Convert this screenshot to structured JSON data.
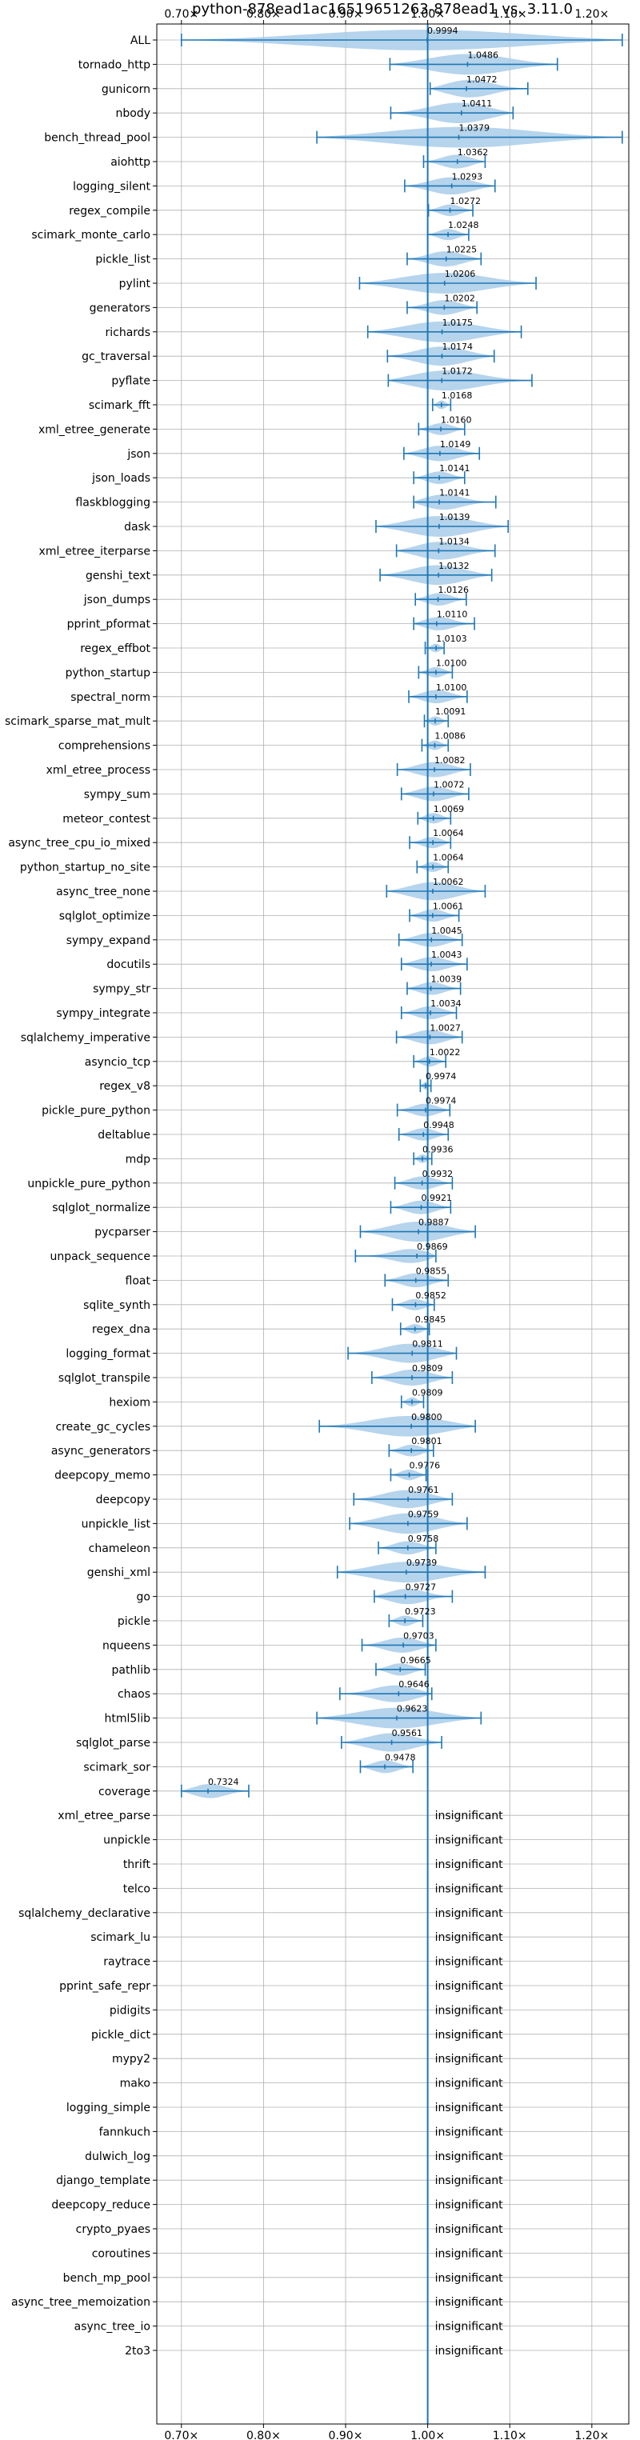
{
  "chart_data": {
    "type": "violin",
    "title": "python-878ead1ac16519651263-878ead1 vs. 3.11.0",
    "xlim": [
      0.67,
      1.245
    ],
    "x_ticks": [
      0.7,
      0.8,
      0.9,
      1.0,
      1.1,
      1.2
    ],
    "x_tick_labels": [
      "0.70×",
      "0.80×",
      "0.90×",
      "1.00×",
      "1.10×",
      "1.20×"
    ],
    "ticks_top_and_bottom": true,
    "grid": true,
    "reference_line": 1.0,
    "colors": {
      "violin": "#a9cde9",
      "whisker": "#1f77b4",
      "grid": "#b0b0b0",
      "reference": "#1f77b4"
    },
    "insignificant_label": "insignificant",
    "benchmarks": [
      {
        "name": "ALL",
        "mean": 0.9994,
        "label": "0.9994",
        "min": 0.7,
        "max": 1.237
      },
      {
        "name": "tornado_http",
        "mean": 1.0486,
        "label": "1.0486",
        "min": 0.954,
        "max": 1.158
      },
      {
        "name": "gunicorn",
        "mean": 1.0472,
        "label": "1.0472",
        "min": 1.003,
        "max": 1.122
      },
      {
        "name": "nbody",
        "mean": 1.0411,
        "label": "1.0411",
        "min": 0.955,
        "max": 1.104
      },
      {
        "name": "bench_thread_pool",
        "mean": 1.0379,
        "label": "1.0379",
        "min": 0.865,
        "max": 1.237
      },
      {
        "name": "aiohttp",
        "mean": 1.0362,
        "label": "1.0362",
        "min": 0.995,
        "max": 1.07
      },
      {
        "name": "logging_silent",
        "mean": 1.0293,
        "label": "1.0293",
        "min": 0.972,
        "max": 1.082
      },
      {
        "name": "regex_compile",
        "mean": 1.0272,
        "label": "1.0272",
        "min": 1.001,
        "max": 1.055
      },
      {
        "name": "scimark_monte_carlo",
        "mean": 1.0248,
        "label": "1.0248",
        "min": 1.0,
        "max": 1.05
      },
      {
        "name": "pickle_list",
        "mean": 1.0225,
        "label": "1.0225",
        "min": 0.975,
        "max": 1.065
      },
      {
        "name": "pylint",
        "mean": 1.0206,
        "label": "1.0206",
        "min": 0.917,
        "max": 1.132
      },
      {
        "name": "generators",
        "mean": 1.0202,
        "label": "1.0202",
        "min": 0.975,
        "max": 1.06
      },
      {
        "name": "richards",
        "mean": 1.0175,
        "label": "1.0175",
        "min": 0.927,
        "max": 1.114
      },
      {
        "name": "gc_traversal",
        "mean": 1.0174,
        "label": "1.0174",
        "min": 0.951,
        "max": 1.081
      },
      {
        "name": "pyflate",
        "mean": 1.0172,
        "label": "1.0172",
        "min": 0.952,
        "max": 1.127
      },
      {
        "name": "scimark_fft",
        "mean": 1.0168,
        "label": "1.0168",
        "min": 1.006,
        "max": 1.028
      },
      {
        "name": "xml_etree_generate",
        "mean": 1.016,
        "label": "1.0160",
        "min": 0.989,
        "max": 1.045
      },
      {
        "name": "json",
        "mean": 1.0149,
        "label": "1.0149",
        "min": 0.971,
        "max": 1.063
      },
      {
        "name": "json_loads",
        "mean": 1.0141,
        "label": "1.0141",
        "min": 0.983,
        "max": 1.045
      },
      {
        "name": "flaskblogging",
        "mean": 1.0141,
        "label": "1.0141",
        "min": 0.983,
        "max": 1.083
      },
      {
        "name": "dask",
        "mean": 1.0139,
        "label": "1.0139",
        "min": 0.937,
        "max": 1.098
      },
      {
        "name": "xml_etree_iterparse",
        "mean": 1.0134,
        "label": "1.0134",
        "min": 0.962,
        "max": 1.082
      },
      {
        "name": "genshi_text",
        "mean": 1.0132,
        "label": "1.0132",
        "min": 0.942,
        "max": 1.078
      },
      {
        "name": "json_dumps",
        "mean": 1.0126,
        "label": "1.0126",
        "min": 0.985,
        "max": 1.047
      },
      {
        "name": "pprint_pformat",
        "mean": 1.011,
        "label": "1.0110",
        "min": 0.983,
        "max": 1.057
      },
      {
        "name": "regex_effbot",
        "mean": 1.0103,
        "label": "1.0103",
        "min": 0.997,
        "max": 1.02
      },
      {
        "name": "python_startup",
        "mean": 1.01,
        "label": "1.0100",
        "min": 0.989,
        "max": 1.03
      },
      {
        "name": "spectral_norm",
        "mean": 1.01,
        "label": "1.0100",
        "min": 0.977,
        "max": 1.048
      },
      {
        "name": "scimark_sparse_mat_mult",
        "mean": 1.0091,
        "label": "1.0091",
        "min": 0.996,
        "max": 1.025
      },
      {
        "name": "comprehensions",
        "mean": 1.0086,
        "label": "1.0086",
        "min": 0.993,
        "max": 1.025
      },
      {
        "name": "xml_etree_process",
        "mean": 1.0082,
        "label": "1.0082",
        "min": 0.963,
        "max": 1.052
      },
      {
        "name": "sympy_sum",
        "mean": 1.0072,
        "label": "1.0072",
        "min": 0.968,
        "max": 1.05
      },
      {
        "name": "meteor_contest",
        "mean": 1.0069,
        "label": "1.0069",
        "min": 0.988,
        "max": 1.028
      },
      {
        "name": "async_tree_cpu_io_mixed",
        "mean": 1.0064,
        "label": "1.0064",
        "min": 0.978,
        "max": 1.028
      },
      {
        "name": "python_startup_no_site",
        "mean": 1.0064,
        "label": "1.0064",
        "min": 0.987,
        "max": 1.025
      },
      {
        "name": "async_tree_none",
        "mean": 1.0062,
        "label": "1.0062",
        "min": 0.95,
        "max": 1.07
      },
      {
        "name": "sqlglot_optimize",
        "mean": 1.0061,
        "label": "1.0061",
        "min": 0.978,
        "max": 1.038
      },
      {
        "name": "sympy_expand",
        "mean": 1.0045,
        "label": "1.0045",
        "min": 0.965,
        "max": 1.042
      },
      {
        "name": "docutils",
        "mean": 1.0043,
        "label": "1.0043",
        "min": 0.968,
        "max": 1.048
      },
      {
        "name": "sympy_str",
        "mean": 1.0039,
        "label": "1.0039",
        "min": 0.975,
        "max": 1.04
      },
      {
        "name": "sympy_integrate",
        "mean": 1.0034,
        "label": "1.0034",
        "min": 0.968,
        "max": 1.035
      },
      {
        "name": "sqlalchemy_imperative",
        "mean": 1.0027,
        "label": "1.0027",
        "min": 0.962,
        "max": 1.042
      },
      {
        "name": "asyncio_tcp",
        "mean": 1.0022,
        "label": "1.0022",
        "min": 0.983,
        "max": 1.022
      },
      {
        "name": "regex_v8",
        "mean": 0.9974,
        "label": "0.9974",
        "min": 0.991,
        "max": 1.004
      },
      {
        "name": "pickle_pure_python",
        "mean": 0.9974,
        "label": "0.9974",
        "min": 0.963,
        "max": 1.027
      },
      {
        "name": "deltablue",
        "mean": 0.9948,
        "label": "0.9948",
        "min": 0.965,
        "max": 1.025
      },
      {
        "name": "mdp",
        "mean": 0.9936,
        "label": "0.9936",
        "min": 0.983,
        "max": 1.005
      },
      {
        "name": "unpickle_pure_python",
        "mean": 0.9932,
        "label": "0.9932",
        "min": 0.96,
        "max": 1.03
      },
      {
        "name": "sqlglot_normalize",
        "mean": 0.9921,
        "label": "0.9921",
        "min": 0.955,
        "max": 1.028
      },
      {
        "name": "pycparser",
        "mean": 0.9887,
        "label": "0.9887",
        "min": 0.918,
        "max": 1.058
      },
      {
        "name": "unpack_sequence",
        "mean": 0.9869,
        "label": "0.9869",
        "min": 0.912,
        "max": 1.01
      },
      {
        "name": "float",
        "mean": 0.9855,
        "label": "0.9855",
        "min": 0.948,
        "max": 1.025
      },
      {
        "name": "sqlite_synth",
        "mean": 0.9852,
        "label": "0.9852",
        "min": 0.957,
        "max": 1.008
      },
      {
        "name": "regex_dna",
        "mean": 0.9845,
        "label": "0.9845",
        "min": 0.967,
        "max": 1.002
      },
      {
        "name": "logging_format",
        "mean": 0.9811,
        "label": "0.9811",
        "min": 0.903,
        "max": 1.035
      },
      {
        "name": "sqlglot_transpile",
        "mean": 0.9809,
        "label": "0.9809",
        "min": 0.932,
        "max": 1.03
      },
      {
        "name": "hexiom",
        "mean": 0.9809,
        "label": "0.9809",
        "min": 0.968,
        "max": 0.995
      },
      {
        "name": "create_gc_cycles",
        "mean": 0.98,
        "label": "0.9800",
        "min": 0.868,
        "max": 1.058
      },
      {
        "name": "async_generators",
        "mean": 0.9801,
        "label": "0.9801",
        "min": 0.953,
        "max": 1.007
      },
      {
        "name": "deepcopy_memo",
        "mean": 0.9776,
        "label": "0.9776",
        "min": 0.955,
        "max": 0.998
      },
      {
        "name": "deepcopy",
        "mean": 0.9761,
        "label": "0.9761",
        "min": 0.91,
        "max": 1.03
      },
      {
        "name": "unpickle_list",
        "mean": 0.9759,
        "label": "0.9759",
        "min": 0.905,
        "max": 1.048
      },
      {
        "name": "chameleon",
        "mean": 0.9758,
        "label": "0.9758",
        "min": 0.94,
        "max": 1.01
      },
      {
        "name": "genshi_xml",
        "mean": 0.9739,
        "label": "0.9739",
        "min": 0.89,
        "max": 1.07
      },
      {
        "name": "go",
        "mean": 0.9727,
        "label": "0.9727",
        "min": 0.935,
        "max": 1.03
      },
      {
        "name": "pickle",
        "mean": 0.9723,
        "label": "0.9723",
        "min": 0.953,
        "max": 0.994
      },
      {
        "name": "nqueens",
        "mean": 0.9703,
        "label": "0.9703",
        "min": 0.92,
        "max": 1.01
      },
      {
        "name": "pathlib",
        "mean": 0.9665,
        "label": "0.9665",
        "min": 0.937,
        "max": 0.997
      },
      {
        "name": "chaos",
        "mean": 0.9646,
        "label": "0.9646",
        "min": 0.893,
        "max": 1.005
      },
      {
        "name": "html5lib",
        "mean": 0.9623,
        "label": "0.9623",
        "min": 0.865,
        "max": 1.065
      },
      {
        "name": "sqlglot_parse",
        "mean": 0.9561,
        "label": "0.9561",
        "min": 0.895,
        "max": 1.017
      },
      {
        "name": "scimark_sor",
        "mean": 0.9478,
        "label": "0.9478",
        "min": 0.918,
        "max": 0.982
      },
      {
        "name": "coverage",
        "mean": 0.7324,
        "label": "0.7324",
        "min": 0.7,
        "max": 0.782
      },
      {
        "name": "xml_etree_parse",
        "insignificant": true
      },
      {
        "name": "unpickle",
        "insignificant": true
      },
      {
        "name": "thrift",
        "insignificant": true
      },
      {
        "name": "telco",
        "insignificant": true
      },
      {
        "name": "sqlalchemy_declarative",
        "insignificant": true
      },
      {
        "name": "scimark_lu",
        "insignificant": true
      },
      {
        "name": "raytrace",
        "insignificant": true
      },
      {
        "name": "pprint_safe_repr",
        "insignificant": true
      },
      {
        "name": "pidigits",
        "insignificant": true
      },
      {
        "name": "pickle_dict",
        "insignificant": true
      },
      {
        "name": "mypy2",
        "insignificant": true
      },
      {
        "name": "mako",
        "insignificant": true
      },
      {
        "name": "logging_simple",
        "insignificant": true
      },
      {
        "name": "fannkuch",
        "insignificant": true
      },
      {
        "name": "dulwich_log",
        "insignificant": true
      },
      {
        "name": "django_template",
        "insignificant": true
      },
      {
        "name": "deepcopy_reduce",
        "insignificant": true
      },
      {
        "name": "crypto_pyaes",
        "insignificant": true
      },
      {
        "name": "coroutines",
        "insignificant": true
      },
      {
        "name": "bench_mp_pool",
        "insignificant": true
      },
      {
        "name": "async_tree_memoization",
        "insignificant": true
      },
      {
        "name": "async_tree_io",
        "insignificant": true
      },
      {
        "name": "2to3",
        "insignificant": true
      }
    ]
  }
}
